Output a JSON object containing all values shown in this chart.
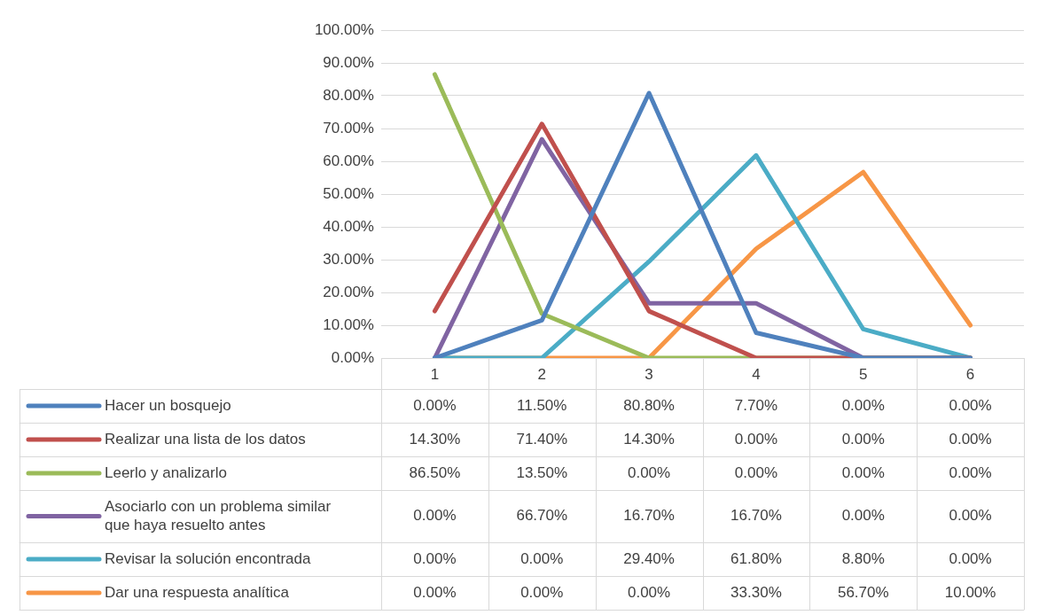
{
  "chart_data": {
    "type": "line",
    "categories": [
      "1",
      "2",
      "3",
      "4",
      "5",
      "6"
    ],
    "ylim": [
      0,
      100
    ],
    "yticks": [
      {
        "value": 0,
        "label": "0.00%"
      },
      {
        "value": 10,
        "label": "10.00%"
      },
      {
        "value": 20,
        "label": "20.00%"
      },
      {
        "value": 30,
        "label": "30.00%"
      },
      {
        "value": 40,
        "label": "40.00%"
      },
      {
        "value": 50,
        "label": "50.00%"
      },
      {
        "value": 60,
        "label": "60.00%"
      },
      {
        "value": 70,
        "label": "70.00%"
      },
      {
        "value": 80,
        "label": "80.00%"
      },
      {
        "value": 90,
        "label": "90.00%"
      },
      {
        "value": 100,
        "label": "100.00%"
      }
    ],
    "grid": "y",
    "legend": "bottom",
    "marker": "none",
    "series": [
      {
        "name": "Hacer un bosquejo",
        "color": "#4f81bd",
        "values": [
          0,
          11.5,
          80.8,
          7.7,
          0,
          0
        ],
        "value_labels": [
          "0.00%",
          "11.50%",
          "80.80%",
          "7.70%",
          "0.00%",
          "0.00%"
        ]
      },
      {
        "name": "Realizar una lista de los datos",
        "color": "#c0504d",
        "values": [
          14.3,
          71.4,
          14.3,
          0,
          0,
          0
        ],
        "value_labels": [
          "14.30%",
          "71.40%",
          "14.30%",
          "0.00%",
          "0.00%",
          "0.00%"
        ]
      },
      {
        "name": "Leerlo y analizarlo",
        "color": "#9bbb59",
        "values": [
          86.5,
          13.5,
          0,
          0,
          0,
          0
        ],
        "value_labels": [
          "86.50%",
          "13.50%",
          "0.00%",
          "0.00%",
          "0.00%",
          "0.00%"
        ]
      },
      {
        "name": "Asociarlo con un problema similar que haya resuelto antes",
        "color": "#8064a2",
        "values": [
          0,
          66.7,
          16.7,
          16.7,
          0,
          0
        ],
        "value_labels": [
          "0.00%",
          "66.70%",
          "16.70%",
          "16.70%",
          "0.00%",
          "0.00%"
        ]
      },
      {
        "name": "Revisar la solución encontrada",
        "color": "#4bacc6",
        "values": [
          0,
          0,
          29.4,
          61.8,
          8.8,
          0
        ],
        "value_labels": [
          "0.00%",
          "0.00%",
          "29.40%",
          "61.80%",
          "8.80%",
          "0.00%"
        ]
      },
      {
        "name": "Dar una respuesta analítica",
        "color": "#f79646",
        "values": [
          0,
          0,
          0,
          33.3,
          56.7,
          10
        ],
        "value_labels": [
          "0.00%",
          "0.00%",
          "0.00%",
          "33.30%",
          "56.70%",
          "10.00%"
        ]
      }
    ]
  }
}
